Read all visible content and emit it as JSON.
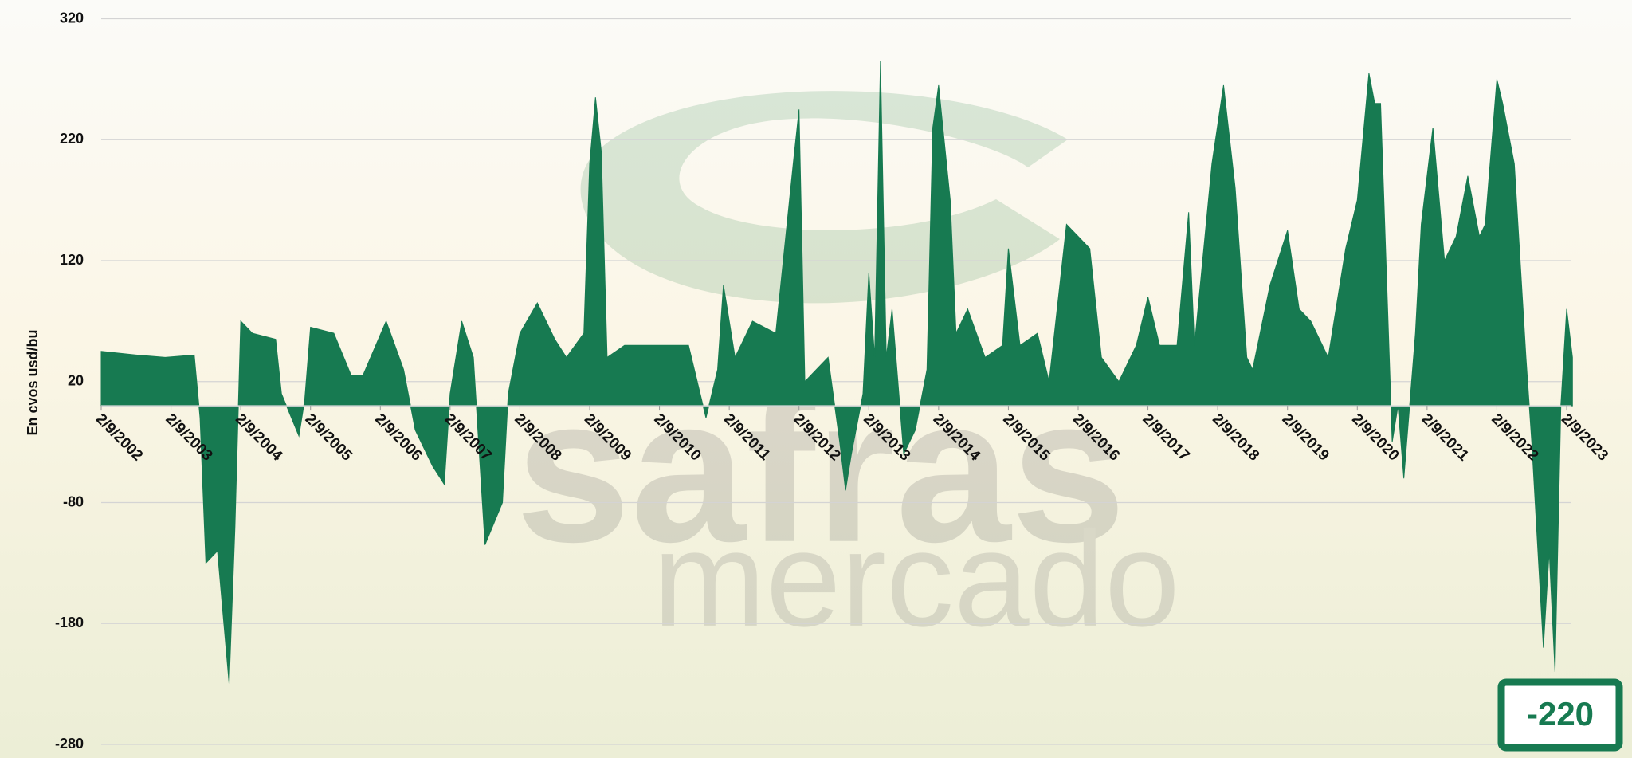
{
  "chart_data": {
    "type": "area",
    "y_label": "En cvos usd/bu",
    "annotation": "-220",
    "watermark": [
      "safras",
      "mercado"
    ],
    "color": "#177a51",
    "grid": true,
    "ylim": [
      -280,
      320
    ],
    "yticks": [
      -280,
      -180,
      -80,
      20,
      120,
      220,
      320
    ],
    "xticks": [
      {
        "value": "2002-09",
        "label": "2/9/2002"
      },
      {
        "value": "2003-09",
        "label": "2/9/2003"
      },
      {
        "value": "2004-09",
        "label": "2/9/2004"
      },
      {
        "value": "2005-09",
        "label": "2/9/2005"
      },
      {
        "value": "2006-09",
        "label": "2/9/2006"
      },
      {
        "value": "2007-09",
        "label": "2/9/2007"
      },
      {
        "value": "2008-09",
        "label": "2/9/2008"
      },
      {
        "value": "2009-09",
        "label": "2/9/2009"
      },
      {
        "value": "2010-09",
        "label": "2/9/2010"
      },
      {
        "value": "2011-09",
        "label": "2/9/2011"
      },
      {
        "value": "2012-09",
        "label": "2/9/2012"
      },
      {
        "value": "2013-09",
        "label": "2/9/2013"
      },
      {
        "value": "2014-09",
        "label": "2/9/2014"
      },
      {
        "value": "2015-09",
        "label": "2/9/2015"
      },
      {
        "value": "2016-09",
        "label": "2/9/2016"
      },
      {
        "value": "2017-09",
        "label": "2/9/2017"
      },
      {
        "value": "2018-09",
        "label": "2/9/2018"
      },
      {
        "value": "2019-09",
        "label": "2/9/2019"
      },
      {
        "value": "2020-09",
        "label": "2/9/2020"
      },
      {
        "value": "2021-09",
        "label": "2/9/2021"
      },
      {
        "value": "2022-09",
        "label": "2/9/2022"
      },
      {
        "value": "2023-09",
        "label": "2/9/2023"
      }
    ],
    "x": [
      "2002-09",
      "2003-03",
      "2003-08",
      "2004-01",
      "2004-02",
      "2004-03",
      "2004-05",
      "2004-07",
      "2004-08",
      "2004-09",
      "2004-11",
      "2005-03",
      "2005-04",
      "2005-07",
      "2005-08",
      "2005-09",
      "2006-01",
      "2006-04",
      "2006-06",
      "2006-10",
      "2007-01",
      "2007-03",
      "2007-06",
      "2007-08",
      "2007-09",
      "2007-11",
      "2008-01",
      "2008-03",
      "2008-06",
      "2008-07",
      "2008-09",
      "2008-12",
      "2009-03",
      "2009-05",
      "2009-08",
      "2009-09",
      "2009-10",
      "2009-11",
      "2009-12",
      "2010-03",
      "2010-10",
      "2011-02",
      "2011-05",
      "2011-07",
      "2011-08",
      "2011-10",
      "2012-01",
      "2012-05",
      "2012-08",
      "2012-09",
      "2012-10",
      "2013-02",
      "2013-04",
      "2013-05",
      "2013-06",
      "2013-08",
      "2013-09",
      "2013-10",
      "2013-11",
      "2013-12",
      "2014-01",
      "2014-03",
      "2014-05",
      "2014-07",
      "2014-08",
      "2014-09",
      "2014-11",
      "2014-12",
      "2015-02",
      "2015-05",
      "2015-08",
      "2015-09",
      "2015-11",
      "2016-02",
      "2016-04",
      "2016-07",
      "2016-09",
      "2016-11",
      "2017-01",
      "2017-04",
      "2017-07",
      "2017-09",
      "2017-11",
      "2018-02",
      "2018-04",
      "2018-05",
      "2018-08",
      "2018-10",
      "2018-12",
      "2019-02",
      "2019-03",
      "2019-06",
      "2019-09",
      "2019-11",
      "2020-01",
      "2020-04",
      "2020-07",
      "2020-09",
      "2020-11",
      "2020-12",
      "2021-01",
      "2021-03",
      "2021-04",
      "2021-05",
      "2021-07",
      "2021-08",
      "2021-10",
      "2021-12",
      "2022-02",
      "2022-04",
      "2022-06",
      "2022-07",
      "2022-09",
      "2022-10",
      "2022-12",
      "2023-02",
      "2023-03",
      "2023-05",
      "2023-06",
      "2023-07",
      "2023-08",
      "2023-09",
      "2023-10"
    ],
    "values": [
      45,
      42,
      40,
      42,
      -10,
      -130,
      -120,
      -230,
      -100,
      70,
      60,
      55,
      10,
      -25,
      5,
      65,
      60,
      25,
      25,
      70,
      30,
      -20,
      -50,
      -65,
      10,
      70,
      40,
      -115,
      -80,
      10,
      60,
      85,
      55,
      40,
      60,
      200,
      255,
      210,
      40,
      50,
      50,
      50,
      -10,
      30,
      100,
      40,
      70,
      60,
      200,
      245,
      20,
      40,
      -30,
      -70,
      -40,
      10,
      110,
      40,
      285,
      40,
      80,
      -40,
      -20,
      30,
      230,
      265,
      170,
      60,
      80,
      40,
      50,
      130,
      50,
      60,
      20,
      150,
      140,
      130,
      40,
      20,
      50,
      90,
      50,
      50,
      160,
      50,
      200,
      265,
      180,
      40,
      30,
      100,
      145,
      80,
      70,
      40,
      130,
      170,
      275,
      250,
      250,
      -30,
      0,
      -60,
      60,
      150,
      230,
      120,
      140,
      190,
      140,
      150,
      270,
      250,
      200,
      40,
      -30,
      -200,
      -120,
      -220,
      0,
      80,
      40
    ]
  }
}
